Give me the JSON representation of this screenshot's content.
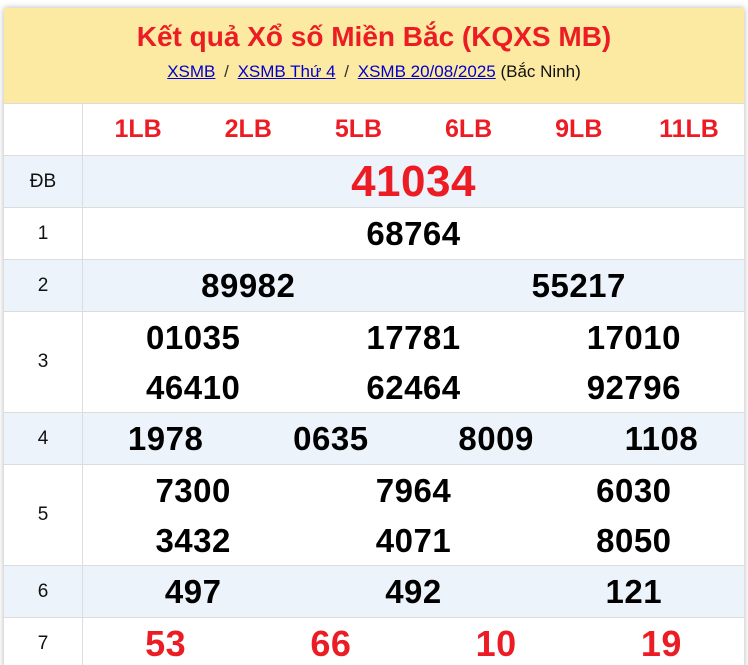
{
  "header": {
    "title": "Kết quả Xổ số Miền Bắc (KQXS MB)",
    "breadcrumb": {
      "links": [
        "XSMB",
        "XSMB Thứ 4",
        "XSMB 20/08/2025"
      ],
      "separator": "/",
      "suffix": "(Bắc Ninh)"
    }
  },
  "table": {
    "column_headers": [
      "1LB",
      "2LB",
      "5LB",
      "6LB",
      "9LB",
      "11LB"
    ],
    "rows": [
      {
        "label": "ĐB",
        "lines": [
          [
            "41034"
          ]
        ],
        "color": "red",
        "striped": true
      },
      {
        "label": "1",
        "lines": [
          [
            "68764"
          ]
        ],
        "color": "black",
        "striped": false
      },
      {
        "label": "2",
        "lines": [
          [
            "89982",
            "55217"
          ]
        ],
        "color": "black",
        "striped": true
      },
      {
        "label": "3",
        "lines": [
          [
            "01035",
            "17781",
            "17010"
          ],
          [
            "46410",
            "62464",
            "92796"
          ]
        ],
        "color": "black",
        "striped": false
      },
      {
        "label": "4",
        "lines": [
          [
            "1978",
            "0635",
            "8009",
            "1108"
          ]
        ],
        "color": "black",
        "striped": true
      },
      {
        "label": "5",
        "lines": [
          [
            "7300",
            "7964",
            "6030"
          ],
          [
            "3432",
            "4071",
            "8050"
          ]
        ],
        "color": "black",
        "striped": false
      },
      {
        "label": "6",
        "lines": [
          [
            "497",
            "492",
            "121"
          ]
        ],
        "color": "black",
        "striped": true
      },
      {
        "label": "7",
        "lines": [
          [
            "53",
            "66",
            "10",
            "19"
          ]
        ],
        "color": "red",
        "striped": false
      }
    ]
  },
  "colors": {
    "header_bg": "#FCE9A2",
    "accent_red": "#EC1C24",
    "link_blue": "#0000CC",
    "stripe_blue": "#EDF3FA",
    "border": "#DCDCDC"
  }
}
